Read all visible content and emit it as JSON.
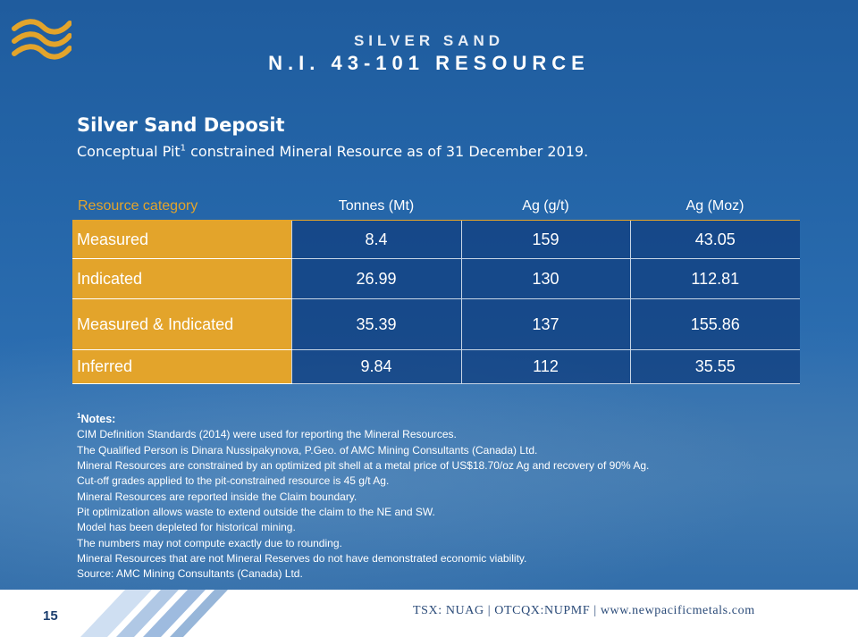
{
  "header": {
    "company": "SILVER SAND",
    "subtitle": "N.I. 43-101 RESOURCE"
  },
  "deposit": {
    "title": "Silver Sand Deposit",
    "subtitle_pre": "Conceptual Pit",
    "subtitle_sup": "1",
    "subtitle_post": " constrained Mineral Resource as of 31 December 2019."
  },
  "table": {
    "headers": [
      "Resource category",
      "Tonnes (Mt)",
      "Ag (g/t)",
      "Ag (Moz)"
    ],
    "rows": [
      [
        "Measured",
        "8.4",
        "159",
        "43.05"
      ],
      [
        "Indicated",
        "26.99",
        "130",
        "112.81"
      ],
      [
        "Measured & Indicated",
        "35.39",
        "137",
        "155.86"
      ],
      [
        "Inferred",
        "9.84",
        "112",
        "35.55"
      ]
    ]
  },
  "notes": {
    "sup": "1",
    "heading": "Notes:",
    "lines": [
      "CIM Definition Standards (2014) were used for reporting the Mineral Resources.",
      "The Qualified Person is Dinara Nussipakynova, P.Geo. of AMC Mining Consultants (Canada) Ltd.",
      "Mineral Resources are constrained by an optimized pit shell at a metal price of US$18.70/oz Ag and recovery of 90% Ag.",
      "Cut-off grades applied to the pit-constrained resource is 45 g/t Ag.",
      "Mineral Resources are reported inside the Claim boundary.",
      "Pit optimization allows waste to extend outside the claim to the NE and SW.",
      "Model has been depleted for historical mining.",
      "The numbers may not compute exactly due to rounding.",
      "Mineral Resources that are not Mineral Reserves do not have demonstrated economic viability.",
      "Source: AMC Mining Consultants (Canada) Ltd."
    ]
  },
  "footer": {
    "page_number": "15",
    "ticker": "TSX: NUAG  |  OTCQX:NUPMF |  www.newpacificmetals.com"
  },
  "colors": {
    "accent": "#e3a42b",
    "background": "#2465a8",
    "table_cell": "#1b4a8a"
  },
  "icons": {
    "logo": "wave-logo-icon"
  }
}
